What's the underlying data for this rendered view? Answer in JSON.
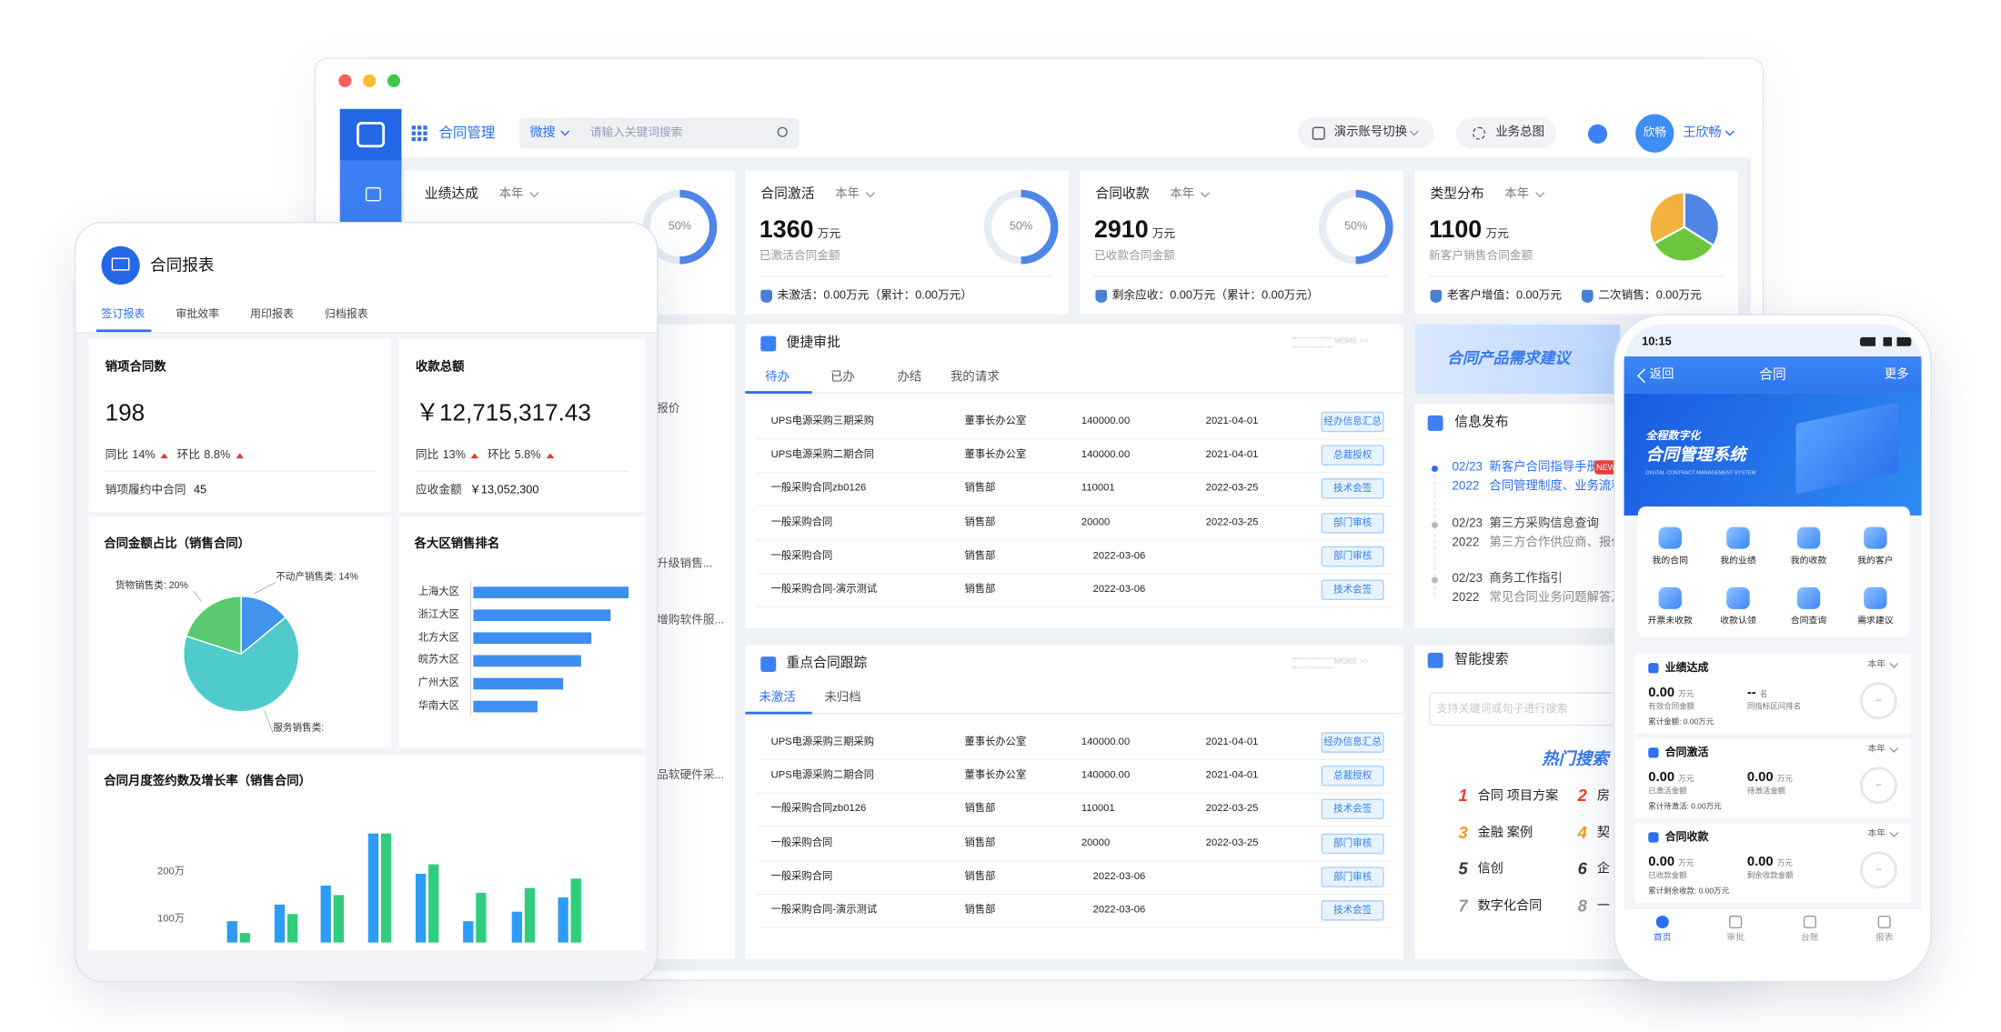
{
  "window": {
    "app": "合同管理",
    "search_scope": "微搜",
    "search_placeholder": "请输入关键词搜索",
    "account_switch": "演示账号切换",
    "overview": "业务总图",
    "avatar": "欣畅",
    "user": "王欣畅"
  },
  "kpis": [
    {
      "title": "业绩达成",
      "period": "本年",
      "ring": {
        "value": 50,
        "label": "50%"
      }
    },
    {
      "title": "合同激活",
      "period": "本年",
      "value": "1360",
      "unit": "万元",
      "caption": "已激活合同金额",
      "ring": {
        "value": 50,
        "label": "50%"
      },
      "footer": [
        "未激活：0.00万元（累计：0.00万元）"
      ]
    },
    {
      "title": "合同收款",
      "period": "本年",
      "value": "2910",
      "unit": "万元",
      "caption": "已收款合同金额",
      "ring": {
        "value": 50,
        "label": "50%"
      },
      "footer": [
        "剩余应收：0.00万元（累计：0.00万元）"
      ]
    },
    {
      "title": "类型分布",
      "period": "本年",
      "value": "1100",
      "unit": "万元",
      "caption": "新客户销售合同金额",
      "pie": {
        "values": [
          34,
          33,
          33
        ],
        "colors": [
          "#4f86e6",
          "#6cc63c",
          "#f3b23f"
        ]
      },
      "footer": [
        "老客户增值：0.00万元",
        "二次销售：0.00万元"
      ]
    }
  ],
  "hidden_panel_snippets": [
    "报价",
    "升级销售...",
    "增购软件服...",
    "品软硬件采..."
  ],
  "approval": {
    "title": "便捷审批",
    "more": "MORE >>",
    "tabs": [
      "待办",
      "已办",
      "办结",
      "我的请求"
    ],
    "rows": [
      [
        "UPS电源采购三期采购",
        "董事长办公室",
        "140000.00",
        "2021-04-01",
        "经办信息汇总"
      ],
      [
        "UPS电源采购二期合同",
        "董事长办公室",
        "140000.00",
        "2021-04-01",
        "总裁授权"
      ],
      [
        "一般采购合同zb0126",
        "销售部",
        "110001",
        "2022-03-25",
        "技术会签"
      ],
      [
        "一般采购合同",
        "销售部",
        "20000",
        "2022-03-25",
        "部门审核"
      ],
      [
        "一般采购合同",
        "销售部",
        null,
        "2022-03-06",
        "部门审核"
      ],
      [
        "一般采购合同-演示测试",
        "销售部",
        null,
        "2022-03-06",
        "技术会签"
      ]
    ]
  },
  "tracking": {
    "title": "重点合同跟踪",
    "more": "MORE >>",
    "tabs": [
      "未激活",
      "未归档"
    ],
    "rows": [
      [
        "UPS电源采购三期采购",
        "董事长办公室",
        "140000.00",
        "2021-04-01",
        "经办信息汇总"
      ],
      [
        "UPS电源采购二期合同",
        "董事长办公室",
        "140000.00",
        "2021-04-01",
        "总裁授权"
      ],
      [
        "一般采购合同zb0126",
        "销售部",
        "110001",
        "2022-03-25",
        "技术会签"
      ],
      [
        "一般采购合同",
        "销售部",
        "20000",
        "2022-03-25",
        "部门审核"
      ],
      [
        "一般采购合同",
        "销售部",
        null,
        "2022-03-06",
        "部门审核"
      ],
      [
        "一般采购合同-演示测试",
        "销售部",
        null,
        "2022-03-06",
        "技术会签"
      ]
    ]
  },
  "banner": "合同产品需求建议",
  "news": {
    "title": "信息发布",
    "badge": "NEW",
    "items": [
      {
        "date": "02/23",
        "year": "2022",
        "title": "新客户合同指导手册",
        "desc": "合同管理制度、业务流程"
      },
      {
        "date": "02/23",
        "year": "2022",
        "title": "第三方采购信息查询",
        "desc": "第三方合作供应商、报价"
      },
      {
        "date": "02/23",
        "year": "2022",
        "title": "商务工作指引",
        "desc": "常见合同业务问题解答及"
      }
    ]
  },
  "search": {
    "title": "智能搜索",
    "placeholder": "支持关键词或句子进行搜索",
    "hot_title": "热门搜索",
    "hot": [
      {
        "rank": 1,
        "text": "合同 项目方案"
      },
      {
        "rank": 2,
        "text": "房"
      },
      {
        "rank": 3,
        "text": "金融 案例"
      },
      {
        "rank": 4,
        "text": "契"
      },
      {
        "rank": 5,
        "text": "信创"
      },
      {
        "rank": 6,
        "text": "企"
      },
      {
        "rank": 7,
        "text": "数字化合同"
      },
      {
        "rank": 8,
        "text": "一"
      }
    ]
  },
  "tablet": {
    "title": "合同报表",
    "tabs": [
      "签订报表",
      "审批效率",
      "用印报表",
      "归档报表"
    ],
    "stats": [
      {
        "title": "销项合同数",
        "value": "198",
        "yoy_label": "同比",
        "yoy": "14%",
        "mom_label": "环比",
        "mom": "8.8%",
        "footer_label": "销项履约中合同",
        "footer_value": "45"
      },
      {
        "title": "收款总额",
        "value": "￥12,715,317.43",
        "yoy_label": "同比",
        "yoy": "13%",
        "mom_label": "环比",
        "mom": "5.8%",
        "footer_label": "应收金额",
        "footer_value": "￥13,052,300"
      }
    ]
  },
  "chart_data": [
    {
      "type": "pie",
      "title": "合同金额占比（销售合同）",
      "values": [
        14,
        66,
        20
      ],
      "labels": [
        "不动产销售类: 14%",
        "服务销售类:",
        "货物销售类: 20%"
      ],
      "colors": [
        "#4193ee",
        "#4fcbcb",
        "#5ac96f"
      ]
    },
    {
      "type": "bar",
      "orientation": "horizontal",
      "title": "各大区销售排名",
      "categories": [
        "上海大区",
        "浙江大区",
        "北方大区",
        "皖苏大区",
        "广州大区",
        "华南大区"
      ],
      "values": [
        121,
        107,
        92,
        84,
        70,
        50
      ],
      "color": "#3d8ef0"
    },
    {
      "type": "bar",
      "title": "合同月度签约数及增长率（销售合同）",
      "categories": [
        null,
        null,
        null,
        null,
        null,
        null,
        null,
        null
      ],
      "series": [
        {
          "color": "#2d9cf4",
          "values": [
            95,
            130,
            170,
            280,
            195,
            95,
            115,
            145
          ]
        },
        {
          "color": "#2fce7c",
          "values": [
            70,
            110,
            150,
            280,
            215,
            155,
            165,
            185
          ]
        }
      ],
      "ylim": [
        50,
        280
      ],
      "yticks": [
        {
          "value": 100,
          "label": "100万"
        },
        {
          "value": 200,
          "label": "200万"
        }
      ]
    }
  ],
  "phone": {
    "time": "10:15",
    "back": "返回",
    "title": "合同",
    "more": "更多",
    "banner": {
      "kicker": "全程数字化",
      "title": "合同管理系统",
      "subtitle": "DIGITAL CONTRACT MANAGEMENT SYSTEM"
    },
    "shortcuts": [
      "我的合同",
      "我的业绩",
      "我的收款",
      "我的客户",
      "开票未收款",
      "收款认领",
      "合同查询",
      "需求建议"
    ],
    "cards": [
      {
        "title": "业绩达成",
        "period": "本年",
        "metrics": [
          {
            "value": "0.00",
            "unit": "万元",
            "label": "有效合同金额"
          },
          {
            "value": "--",
            "unit": "名",
            "label": "同指标区间排名"
          }
        ],
        "total": "累计金额: 0.00万元",
        "ring": "--"
      },
      {
        "title": "合同激活",
        "period": "本年",
        "metrics": [
          {
            "value": "0.00",
            "unit": "万元",
            "label": "已激活金额"
          },
          {
            "value": "0.00",
            "unit": "万元",
            "label": "待激活金额"
          }
        ],
        "total": "累计待激活: 0.00万元",
        "ring": "--"
      },
      {
        "title": "合同收款",
        "period": "本年",
        "metrics": [
          {
            "value": "0.00",
            "unit": "万元",
            "label": "已收款金额"
          },
          {
            "value": "0.00",
            "unit": "万元",
            "label": "剩余收款金额"
          }
        ],
        "total": "累计剩余收款: 0.00万元",
        "ring": "--"
      }
    ],
    "tabs": [
      "首页",
      "审批",
      "台账",
      "报表"
    ]
  }
}
